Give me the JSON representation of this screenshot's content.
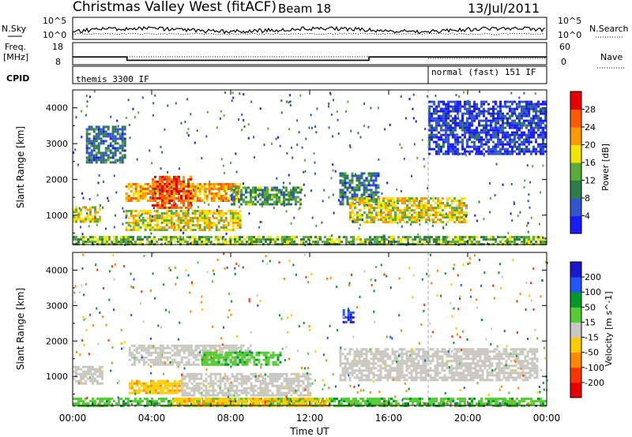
{
  "header": {
    "title": "Christmas Valley West (fitACF)",
    "beam": "Beam 18",
    "date": "13/Jul/2011"
  },
  "sky_panel": {
    "left_label": "N.Sky",
    "left_tick_top": "10^5",
    "left_tick_bottom": "10^0",
    "right_tick_top": "10^5",
    "right_tick_bottom": "10^0",
    "right_label": "N.Search"
  },
  "freq_panel": {
    "left_label_line1": "Freq.",
    "left_label_line2": "[MHz]",
    "left_tick_top": "18",
    "left_tick_bottom": "8",
    "right_tick_top": "60",
    "right_tick_bottom": "0",
    "right_label": "Nave"
  },
  "cpid_panel": {
    "label": "CPID",
    "programs": [
      "themis 3300 IF",
      "normal (fast) 151 IF"
    ]
  },
  "x_axis": {
    "label": "Time UT",
    "ticks": [
      "00:00",
      "04:00",
      "08:00",
      "12:00",
      "16:00",
      "20:00",
      "00:00"
    ]
  },
  "power_panel": {
    "ylabel": "Slant Range [km]",
    "yticks": [
      "4000",
      "3000",
      "2000",
      "1000"
    ],
    "colorbar_label": "Power [dB]",
    "colorbar_ticks": [
      "28",
      "24",
      "20",
      "16",
      "12",
      "8",
      "4"
    ]
  },
  "velocity_panel": {
    "ylabel": "Slant Range [km]",
    "yticks": [
      "4000",
      "3000",
      "2000",
      "1000"
    ],
    "colorbar_label": "Velocity [m s^-1]",
    "colorbar_ticks": [
      "200",
      "100",
      "50",
      "15",
      "-15",
      "-50",
      "-100",
      "-200"
    ]
  },
  "chart_data": {
    "type": "heatmap",
    "x_range_hours": [
      0,
      24
    ],
    "y_range_km": [
      180,
      4500
    ],
    "cpid_switch_hour": 18.0,
    "frequency_mhz": [
      {
        "start": "00:00",
        "end": "02:45",
        "value": 11.5
      },
      {
        "start": "02:45",
        "end": "15:00",
        "value": 10.0
      },
      {
        "start": "15:00",
        "end": "24:00",
        "value": 11.5
      }
    ],
    "power_colors": [
      "#1a1aff",
      "#3355cc",
      "#2e7d46",
      "#5aaa3c",
      "#f2e600",
      "#ff9900",
      "#ff5a00",
      "#e60000"
    ],
    "velocity_colors": [
      "#1a1acc",
      "#2255ff",
      "#009a2a",
      "#55cc33",
      "#c8c8c0",
      "#ffcc00",
      "#ff8800",
      "#ff3300",
      "#e60000"
    ],
    "power_bands": [
      {
        "start": "00:00",
        "end": "01:20",
        "range_km": [
          850,
          1250
        ],
        "level_db": 18
      },
      {
        "start": "00:40",
        "end": "02:40",
        "range_km": [
          2500,
          3500
        ],
        "level_db": 8
      },
      {
        "start": "02:40",
        "end": "08:30",
        "range_km": [
          1400,
          1900
        ],
        "level_db": 22
      },
      {
        "start": "02:40",
        "end": "08:30",
        "range_km": [
          600,
          1150
        ],
        "level_db": 18
      },
      {
        "start": "04:00",
        "end": "06:00",
        "range_km": [
          1200,
          2100
        ],
        "level_db": 26
      },
      {
        "start": "08:00",
        "end": "11:30",
        "range_km": [
          1300,
          1800
        ],
        "level_db": 12
      },
      {
        "start": "13:30",
        "end": "15:30",
        "range_km": [
          1300,
          2200
        ],
        "level_db": 8
      },
      {
        "start": "14:00",
        "end": "20:00",
        "range_km": [
          800,
          1500
        ],
        "level_db": 18
      },
      {
        "start": "00:00",
        "end": "24:00",
        "range_km": [
          180,
          420
        ],
        "level_db": 14
      },
      {
        "start": "18:00",
        "end": "24:00",
        "range_km": [
          2700,
          4200
        ],
        "level_db": 4
      }
    ],
    "velocity_bands": [
      {
        "start": "00:00",
        "end": "01:30",
        "range_km": [
          800,
          1300
        ],
        "velocity": 0
      },
      {
        "start": "02:50",
        "end": "09:00",
        "range_km": [
          1350,
          1900
        ],
        "velocity": 0
      },
      {
        "start": "06:30",
        "end": "10:30",
        "range_km": [
          1300,
          1700
        ],
        "velocity": 40
      },
      {
        "start": "02:50",
        "end": "05:30",
        "range_km": [
          500,
          900
        ],
        "velocity": -40
      },
      {
        "start": "05:30",
        "end": "12:00",
        "range_km": [
          450,
          1100
        ],
        "velocity": 0
      },
      {
        "start": "13:30",
        "end": "23:30",
        "range_km": [
          900,
          1800
        ],
        "velocity": 0
      },
      {
        "start": "13:40",
        "end": "14:10",
        "range_km": [
          2500,
          2900
        ],
        "velocity": 200
      },
      {
        "start": "00:00",
        "end": "24:00",
        "range_km": [
          180,
          400
        ],
        "velocity": 40
      },
      {
        "start": "05:00",
        "end": "13:00",
        "range_km": [
          180,
          400
        ],
        "velocity": -40
      }
    ]
  }
}
